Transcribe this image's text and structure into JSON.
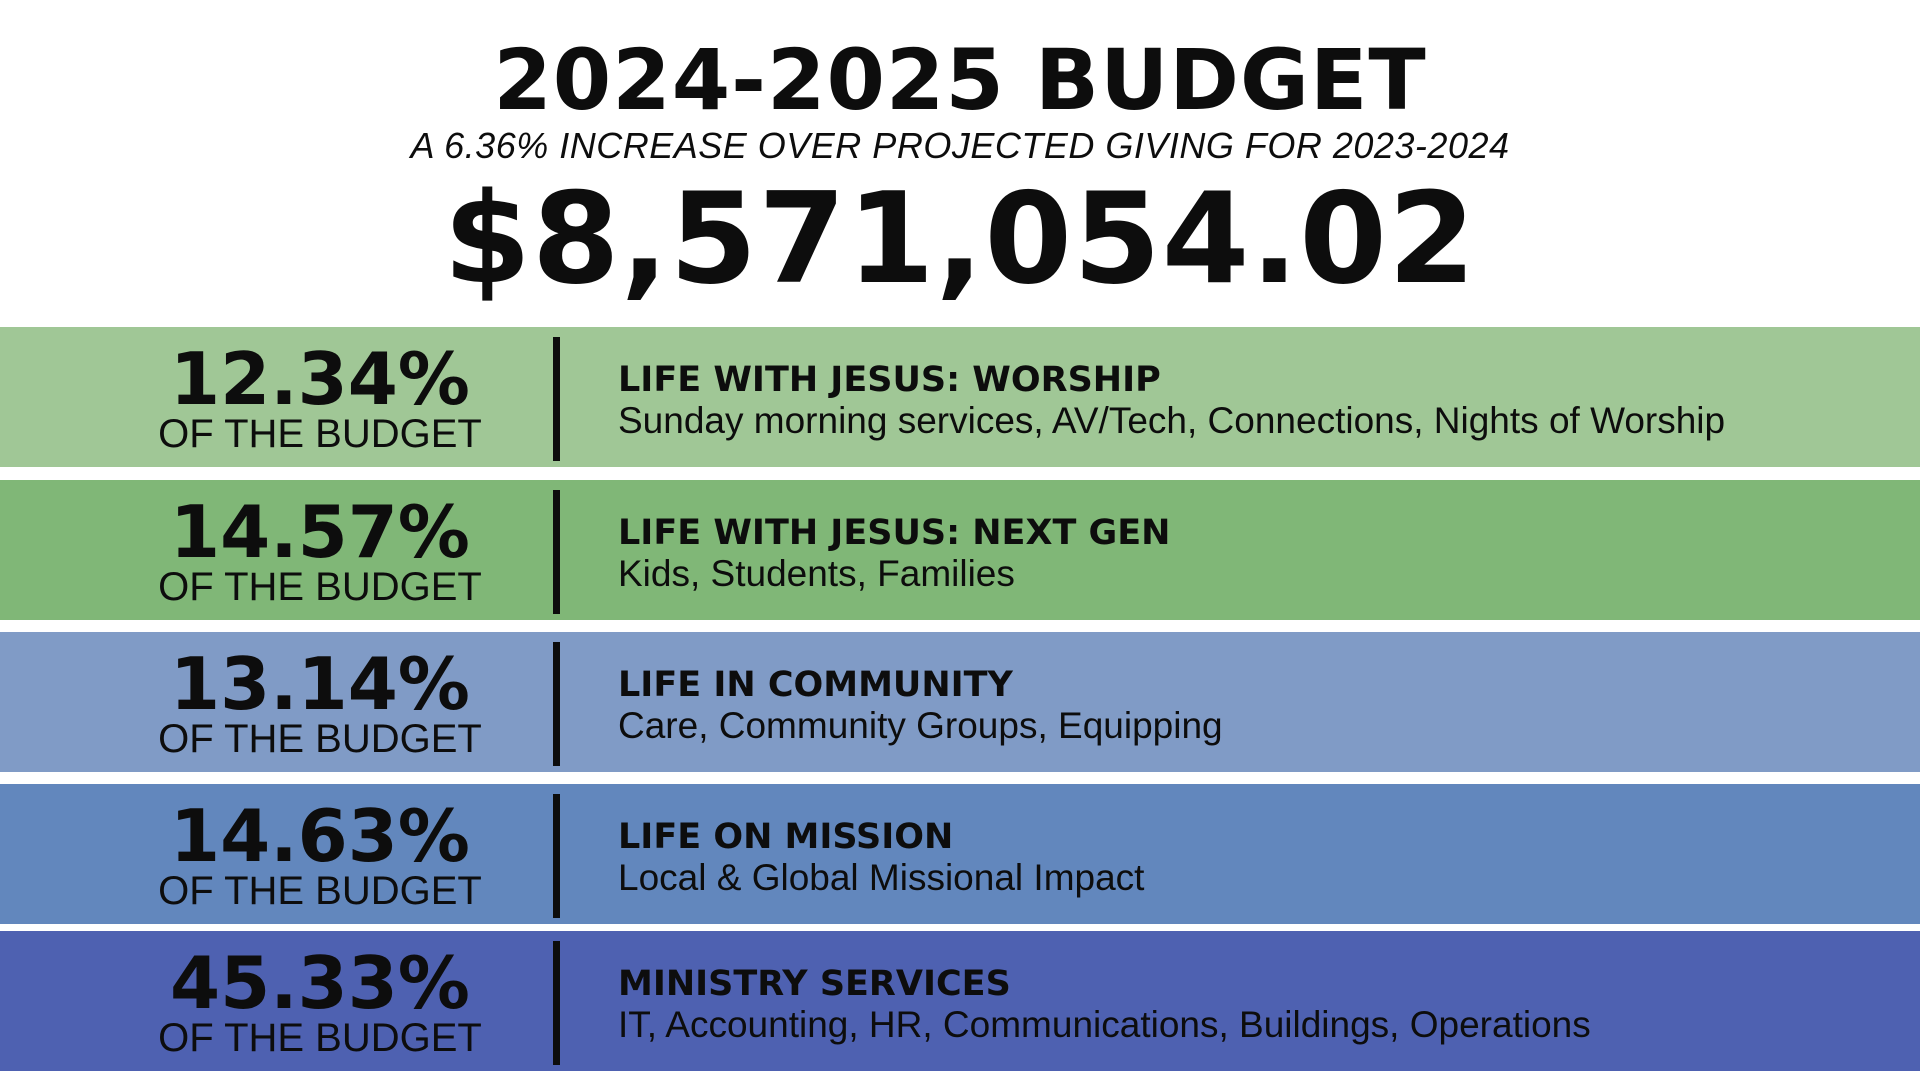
{
  "header": {
    "title": "2024-2025 BUDGET",
    "subtitle": "A 6.36% INCREASE OVER PROJECTED GIVING FOR 2023-2024",
    "amount": "$8,571,054.02"
  },
  "categories": [
    {
      "percent": "12.34%",
      "percent_label": "OF THE BUDGET",
      "name": "LIFE WITH JESUS: WORSHIP",
      "description": "Sunday morning services, AV/Tech, Connections, Nights of Worship",
      "color": "#a0c796"
    },
    {
      "percent": "14.57%",
      "percent_label": "OF THE BUDGET",
      "name": "LIFE WITH JESUS: NEXT GEN",
      "description": "Kids, Students, Families",
      "color": "#80b777"
    },
    {
      "percent": "13.14%",
      "percent_label": "OF THE BUDGET",
      "name": "LIFE IN COMMUNITY",
      "description": "Care, Community Groups, Equipping",
      "color": "#809bc6"
    },
    {
      "percent": "14.63%",
      "percent_label": "OF THE BUDGET",
      "name": "LIFE ON MISSION",
      "description": "Local & Global Missional Impact",
      "color": "#6287bd"
    },
    {
      "percent": "45.33%",
      "percent_label": "OF THE BUDGET",
      "name": "MINISTRY SERVICES",
      "description": "IT, Accounting, HR, Communications, Buildings, Operations",
      "color": "#4e61b1"
    }
  ]
}
